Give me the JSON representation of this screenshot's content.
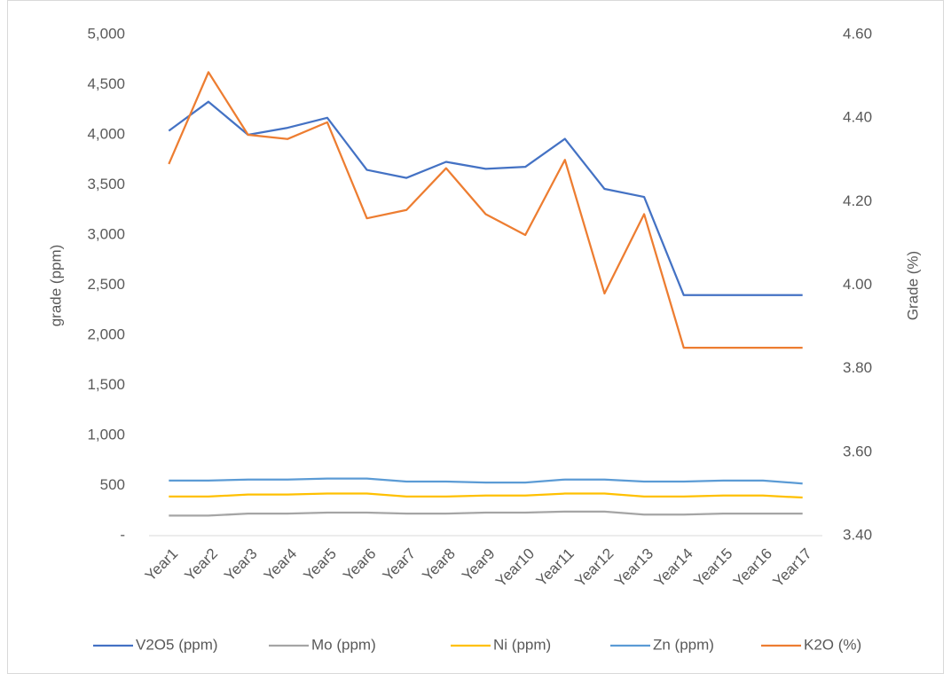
{
  "chart_data": {
    "type": "line",
    "categories": [
      "Year1",
      "Year2",
      "Year3",
      "Year4",
      "Year5",
      "Year6",
      "Year7",
      "Year8",
      "Year9",
      "Year10",
      "Year11",
      "Year12",
      "Year13",
      "Year14",
      "Year15",
      "Year16",
      "Year17"
    ],
    "series": [
      {
        "name": "V2O5 (ppm)",
        "color": "#4472c4",
        "values": [
          4040,
          4330,
          4000,
          4070,
          4170,
          3650,
          3570,
          3730,
          3660,
          3680,
          3960,
          3460,
          3380,
          2400,
          2400,
          2400,
          2400
        ]
      },
      {
        "name": "Mo (ppm)",
        "color": "#a5a5a5",
        "values": [
          200,
          200,
          220,
          220,
          230,
          230,
          220,
          220,
          230,
          230,
          240,
          240,
          210,
          210,
          220,
          220,
          220
        ]
      },
      {
        "name": "Ni (ppm)",
        "color": "#ffc000",
        "values": [
          390,
          390,
          410,
          410,
          420,
          420,
          390,
          390,
          400,
          400,
          420,
          420,
          390,
          390,
          400,
          400,
          380
        ]
      },
      {
        "name": "Zn (ppm)",
        "color": "#5b9bd5",
        "values": [
          550,
          550,
          560,
          560,
          570,
          570,
          540,
          540,
          530,
          530,
          560,
          560,
          540,
          540,
          550,
          550,
          520
        ]
      },
      {
        "name": "K2O (%)",
        "color": "#ed7d31",
        "axis": "y2",
        "values": [
          4.29,
          4.51,
          4.36,
          4.35,
          4.39,
          4.16,
          4.18,
          4.28,
          4.17,
          4.12,
          4.3,
          3.98,
          4.17,
          3.85,
          3.85,
          3.85,
          3.85
        ]
      }
    ],
    "ylabel": "grade (ppm)",
    "y2label": "Grade (%)",
    "ylim": [
      0,
      5000
    ],
    "yticks": [
      {
        "value": 0,
        "label": "-"
      },
      500,
      {
        "value": 1000,
        "label": "1,000"
      },
      {
        "value": 1500,
        "label": "1,500"
      },
      {
        "value": 2000,
        "label": "2,000"
      },
      {
        "value": 2500,
        "label": "2,500"
      },
      {
        "value": 3000,
        "label": "3,000"
      },
      {
        "value": 3500,
        "label": "3,500"
      },
      {
        "value": 4000,
        "label": "4,000"
      },
      {
        "value": 4500,
        "label": "4,500"
      },
      {
        "value": 5000,
        "label": "5,000"
      }
    ],
    "y2lim": [
      3.4,
      4.6
    ],
    "y2ticks": [
      {
        "value": 3.4,
        "label": "3.40"
      },
      {
        "value": 3.6,
        "label": "3.60"
      },
      {
        "value": 3.8,
        "label": "3.80"
      },
      {
        "value": 4.0,
        "label": "4.00"
      },
      {
        "value": 4.2,
        "label": "4.20"
      },
      {
        "value": 4.4,
        "label": "4.40"
      },
      {
        "value": 4.6,
        "label": "4.60"
      }
    ],
    "grid": false,
    "legend": "bottom"
  }
}
